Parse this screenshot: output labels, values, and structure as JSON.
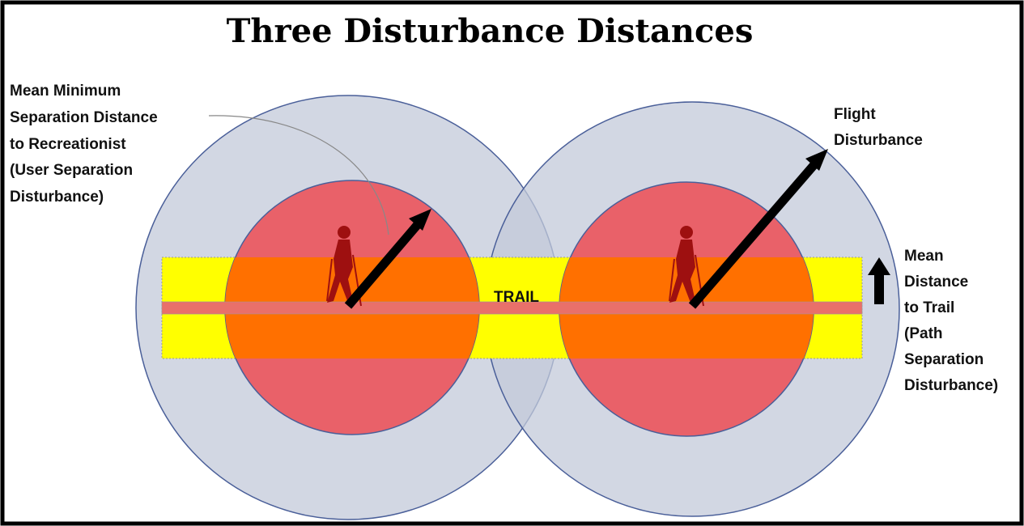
{
  "title": "Three Disturbance Distances",
  "labels": {
    "user_separation": [
      "Mean Minimum",
      "Separation Distance",
      "to Recreationist",
      "(User Separation",
      "Disturbance)"
    ],
    "flight": [
      "Flight",
      "Disturbance"
    ],
    "path_separation": [
      "Mean",
      "Distance",
      "to Trail",
      "(Path",
      "Separation",
      "Disturbance)"
    ],
    "trail": "TRAIL"
  }
}
